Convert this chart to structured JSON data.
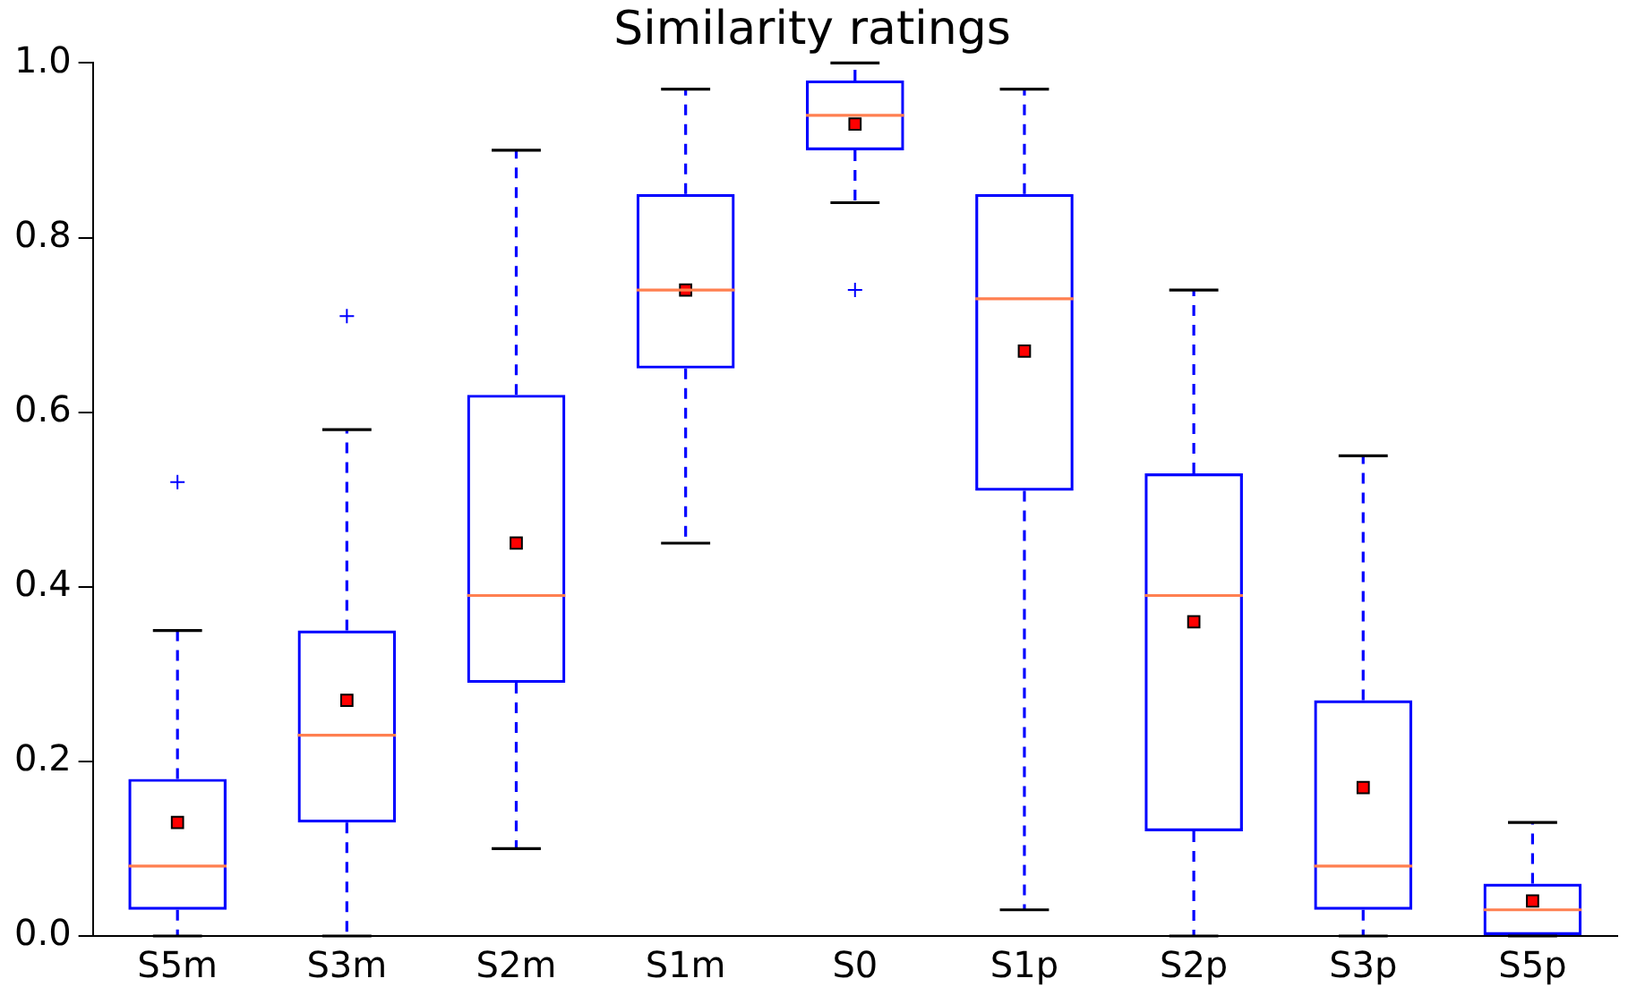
{
  "chart_data": {
    "type": "box",
    "title": "Similarity ratings",
    "categories": [
      "S5m",
      "S3m",
      "S2m",
      "S1m",
      "S0",
      "S1p",
      "S2p",
      "S3p",
      "S5p"
    ],
    "series": [
      {
        "color": "#0000ff",
        "boxes": [
          {
            "low": 0.0,
            "q1": 0.03,
            "median": 0.08,
            "q3": 0.18,
            "high": 0.35,
            "mean": 0.13,
            "outliers": [
              0.52
            ]
          },
          {
            "low": 0.0,
            "q1": 0.13,
            "median": 0.23,
            "q3": 0.35,
            "high": 0.58,
            "mean": 0.27,
            "outliers": [
              0.71
            ]
          },
          {
            "low": 0.1,
            "q1": 0.29,
            "median": 0.39,
            "q3": 0.62,
            "high": 0.9,
            "mean": 0.45
          },
          {
            "low": 0.45,
            "q1": 0.65,
            "median": 0.74,
            "q3": 0.85,
            "high": 0.97,
            "mean": 0.74
          },
          {
            "low": 0.84,
            "q1": 0.9,
            "median": 0.94,
            "q3": 0.98,
            "high": 1.0,
            "mean": 0.93,
            "outliers": [
              0.74
            ]
          },
          {
            "low": 0.03,
            "q1": 0.51,
            "median": 0.73,
            "q3": 0.85,
            "high": 0.97,
            "mean": 0.67
          },
          {
            "low": 0.0,
            "q1": 0.12,
            "median": 0.39,
            "q3": 0.53,
            "high": 0.74,
            "mean": 0.36
          },
          {
            "low": 0.0,
            "q1": 0.03,
            "median": 0.08,
            "q3": 0.27,
            "high": 0.55,
            "mean": 0.17
          },
          {
            "low": 0.0,
            "q1": 0.0,
            "median": 0.03,
            "q3": 0.06,
            "high": 0.13,
            "mean": 0.04
          }
        ]
      }
    ],
    "ylim": [
      0,
      1
    ],
    "yticks": [
      {
        "value": 0,
        "label": "0.0"
      },
      {
        "value": 0.2,
        "label": "0.2"
      },
      {
        "value": 0.4,
        "label": "0.4"
      },
      {
        "value": 0.6,
        "label": "0.6"
      },
      {
        "value": 0.8,
        "label": "0.8"
      },
      {
        "value": 1,
        "label": "1.0"
      }
    ],
    "grid": false,
    "legend": false,
    "marker": "square"
  }
}
